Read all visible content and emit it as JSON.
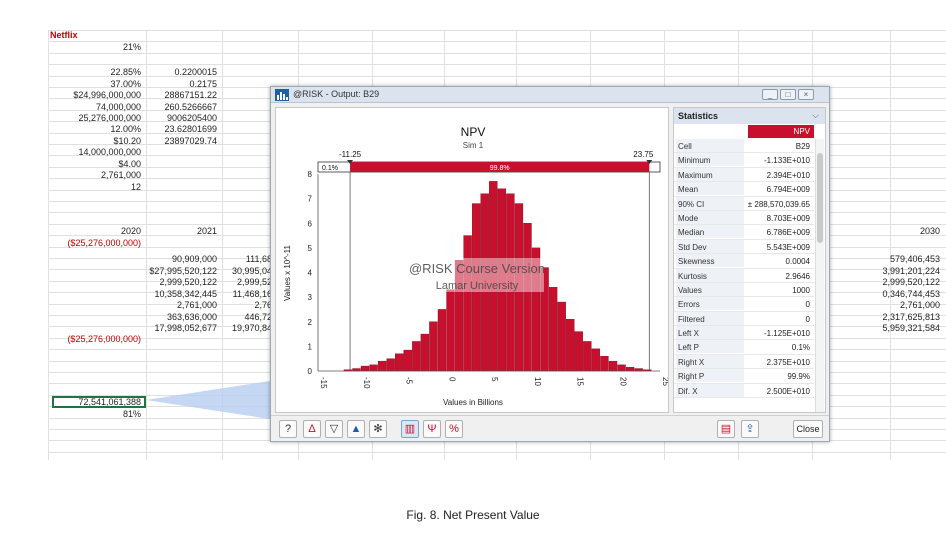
{
  "sheet": {
    "netflix_label": "Netflix",
    "col_a": [
      "21%",
      "22.85%",
      "37.00%",
      "$24,996,000,000",
      "74,000,000",
      "25,276,000,000",
      "12.00%",
      "$10.20",
      "14,000,000,000",
      "$4.00",
      "2,761,000",
      "12"
    ],
    "col_b": [
      "0.2200015",
      "0.2175",
      "28867151.22",
      "260.5266667",
      "9006205400",
      "23.62801699",
      "23897029.74"
    ],
    "year_a": "2020",
    "year_b": "2021",
    "year_last": "2030",
    "neg_a": "($25,276,000,000)",
    "neg_b": "($25,276,000,000)",
    "col_b2": [
      "90,909,000",
      "$27,995,520,122",
      "2,999,520,122",
      "10,358,342,445",
      "2,761,000",
      "363,636,000",
      "17,998,052,677"
    ],
    "col_c2": [
      "111,68",
      "30,995,04",
      "2,999,52",
      "11,468,16",
      "2,76",
      "446,72",
      "19,970,84"
    ],
    "col_last": [
      "579,406,453",
      "3,991,201,224",
      "2,999,520,122",
      "0,346,744,453",
      "2,761,000",
      "2,317,625,813",
      "5,959,321,584"
    ],
    "npv_value": "72,541,061,388",
    "prob": "81%"
  },
  "window": {
    "title": "@RISK - Output: B29",
    "min_label": "_",
    "max_label": "□",
    "close_label": "×"
  },
  "stats": {
    "header": "Statistics",
    "column": "NPV",
    "rows": [
      {
        "label": "Cell",
        "value": "B29"
      },
      {
        "label": "Minimum",
        "value": "-1.133E+010"
      },
      {
        "label": "Maximum",
        "value": "2.394E+010"
      },
      {
        "label": "Mean",
        "value": "6.794E+009"
      },
      {
        "label": "90% CI",
        "value": "± 288,570,039.65"
      },
      {
        "label": "Mode",
        "value": "8.703E+009"
      },
      {
        "label": "Median",
        "value": "6.786E+009"
      },
      {
        "label": "Std Dev",
        "value": "5.543E+009"
      },
      {
        "label": "Skewness",
        "value": "0.0004"
      },
      {
        "label": "Kurtosis",
        "value": "2.9646"
      },
      {
        "label": "Values",
        "value": "1000"
      },
      {
        "label": "Errors",
        "value": "0"
      },
      {
        "label": "Filtered",
        "value": "0"
      },
      {
        "label": "Left X",
        "value": "-1.125E+010"
      },
      {
        "label": "Left P",
        "value": "0.1%"
      },
      {
        "label": "Right X",
        "value": "2.375E+010"
      },
      {
        "label": "Right P",
        "value": "99.9%"
      },
      {
        "label": "Dif. X",
        "value": "2.500E+010"
      }
    ]
  },
  "chart_data": {
    "type": "bar",
    "title": "NPV",
    "subtitle": "Sim 1",
    "xlabel": "Values in Billions",
    "ylabel": "Values x 10^-11",
    "xlim": [
      -15,
      25
    ],
    "ylim": [
      0,
      8
    ],
    "xticks": [
      "-15",
      "-10",
      "-5",
      "0",
      "5",
      "10",
      "15",
      "20",
      "25"
    ],
    "yticks": [
      "0",
      "1",
      "2",
      "3",
      "4",
      "5",
      "6",
      "7",
      "8"
    ],
    "bin_width": 1,
    "bin_starts": [
      -12,
      -11,
      -10,
      -9,
      -8,
      -7,
      -6,
      -5,
      -4,
      -3,
      -2,
      -1,
      0,
      1,
      2,
      3,
      4,
      5,
      6,
      7,
      8,
      9,
      10,
      11,
      12,
      13,
      14,
      15,
      16,
      17,
      18,
      19,
      20,
      21,
      22,
      23
    ],
    "values": [
      0.05,
      0.1,
      0.2,
      0.25,
      0.4,
      0.5,
      0.7,
      0.85,
      1.2,
      1.5,
      2.0,
      2.5,
      3.3,
      4.5,
      5.5,
      6.8,
      7.2,
      7.7,
      7.4,
      7.2,
      6.8,
      6.0,
      5.0,
      4.2,
      3.4,
      2.8,
      2.1,
      1.6,
      1.2,
      0.9,
      0.6,
      0.4,
      0.25,
      0.15,
      0.1,
      0.05
    ],
    "marker_left": "-11.25",
    "marker_right": "23.75",
    "band_left_pct": "0.1%",
    "band_mid_pct": "99.8%",
    "bar_color": "#c8102e",
    "watermark_line1": "@RISK Course Version",
    "watermark_line2": "Lamar University"
  },
  "toolbar": {
    "close_label": "Close"
  },
  "caption": "Fig. 8. Net Present Value"
}
